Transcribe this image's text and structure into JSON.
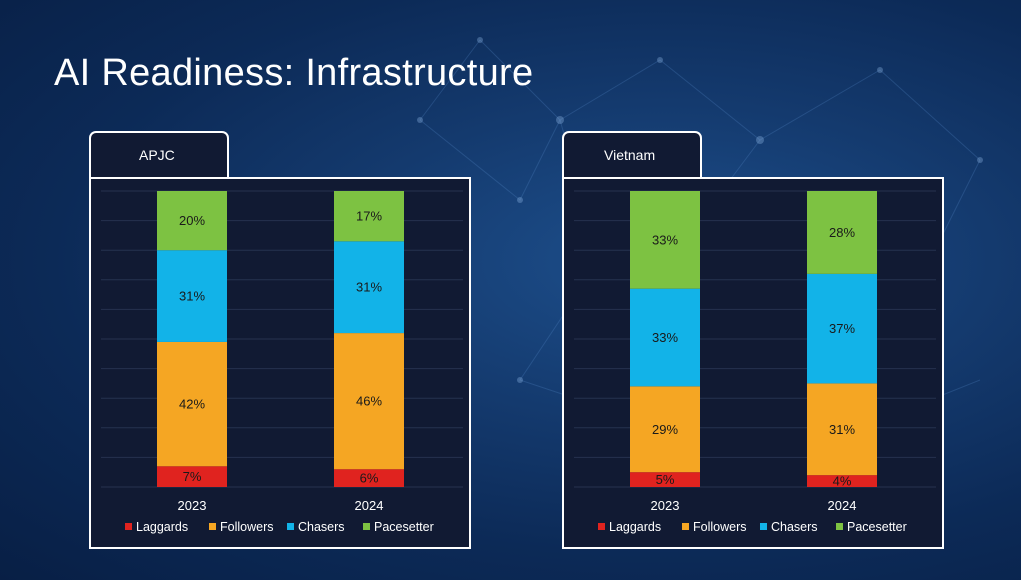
{
  "title": "AI Readiness: Infrastructure",
  "colors": {
    "laggards": "#e0231f",
    "followers": "#f5a623",
    "chasers": "#12b3e8",
    "pacesetter": "#7dc242"
  },
  "chart_data": [
    {
      "type": "bar",
      "stacked": true,
      "tab_label": "APJC",
      "categories": [
        "2023",
        "2024"
      ],
      "series": [
        {
          "name": "Laggards",
          "color": "#e0231f",
          "values": [
            7,
            6
          ],
          "labels": [
            "7%",
            "6%"
          ]
        },
        {
          "name": "Followers",
          "color": "#f5a623",
          "values": [
            42,
            46
          ],
          "labels": [
            "42%",
            "46%"
          ]
        },
        {
          "name": "Chasers",
          "color": "#12b3e8",
          "values": [
            31,
            31
          ],
          "labels": [
            "31%",
            "31%"
          ]
        },
        {
          "name": "Pacesetter",
          "color": "#7dc242",
          "values": [
            20,
            17
          ],
          "labels": [
            "20%",
            "17%"
          ]
        }
      ],
      "ylim": [
        0,
        100
      ],
      "legend": "bottom"
    },
    {
      "type": "bar",
      "stacked": true,
      "tab_label": "Vietnam",
      "categories": [
        "2023",
        "2024"
      ],
      "series": [
        {
          "name": "Laggards",
          "color": "#e0231f",
          "values": [
            5,
            4
          ],
          "labels": [
            "5%",
            "4%"
          ]
        },
        {
          "name": "Followers",
          "color": "#f5a623",
          "values": [
            29,
            31
          ],
          "labels": [
            "29%",
            "31%"
          ]
        },
        {
          "name": "Chasers",
          "color": "#12b3e8",
          "values": [
            33,
            37
          ],
          "labels": [
            "33%",
            "37%"
          ]
        },
        {
          "name": "Pacesetter",
          "color": "#7dc242",
          "values": [
            33,
            28
          ],
          "labels": [
            "33%",
            "28%"
          ]
        }
      ],
      "ylim": [
        0,
        100
      ],
      "legend": "bottom"
    }
  ]
}
